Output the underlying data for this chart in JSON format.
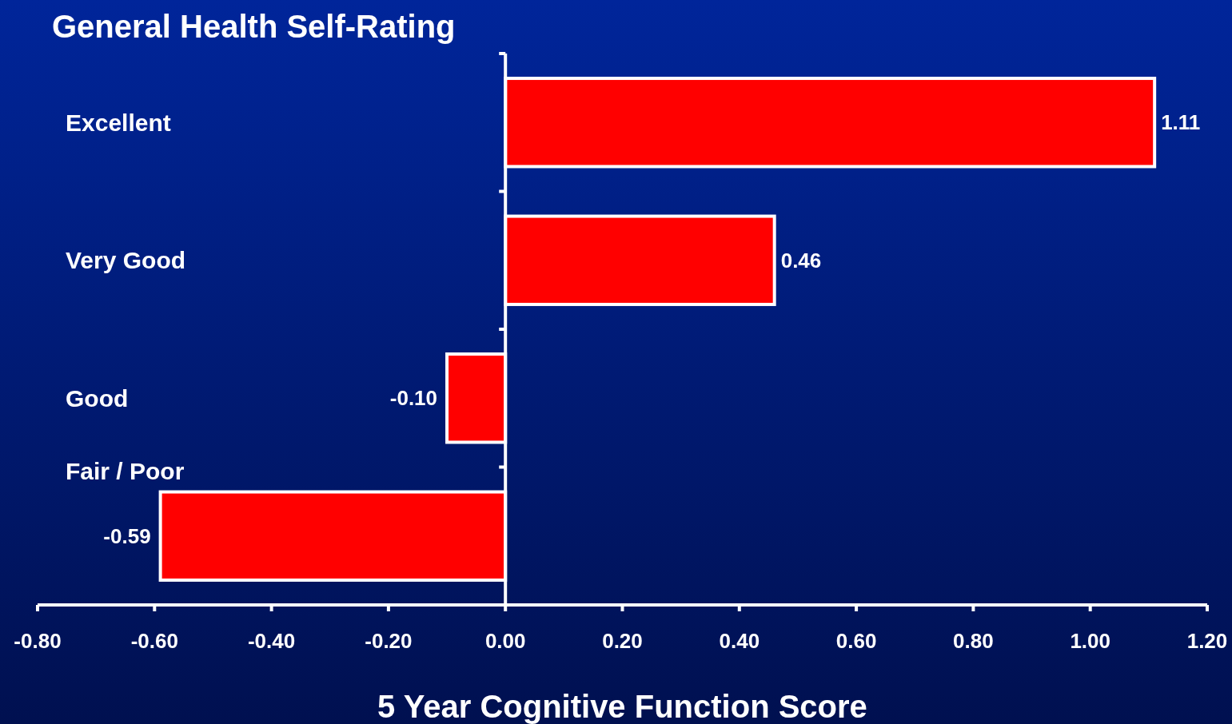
{
  "chart_data": {
    "type": "bar",
    "orientation": "horizontal",
    "title": "General Health Self-Rating",
    "xlabel": "5 Year Cognitive Function Score",
    "categories": [
      "Excellent",
      "Very Good",
      "Good",
      "Fair / Poor"
    ],
    "values": [
      1.11,
      0.46,
      -0.1,
      -0.59
    ],
    "value_labels": [
      "1.11",
      "0.46",
      "-0.10",
      "-0.59"
    ],
    "color": "#ff0000",
    "xlim": [
      -0.8,
      1.2
    ],
    "xticks": [
      {
        "value": -0.8,
        "label": "-0.80"
      },
      {
        "value": -0.6,
        "label": "-0.60"
      },
      {
        "value": -0.4,
        "label": "-0.40"
      },
      {
        "value": -0.2,
        "label": "-0.20"
      },
      {
        "value": 0,
        "label": "0.00"
      },
      {
        "value": 0.2,
        "label": "0.20"
      },
      {
        "value": 0.4,
        "label": "0.40"
      },
      {
        "value": 0.6,
        "label": "0.60"
      },
      {
        "value": 0.8,
        "label": "0.80"
      },
      {
        "value": 1.0,
        "label": "1.00"
      },
      {
        "value": 1.2,
        "label": "1.20"
      }
    ]
  }
}
